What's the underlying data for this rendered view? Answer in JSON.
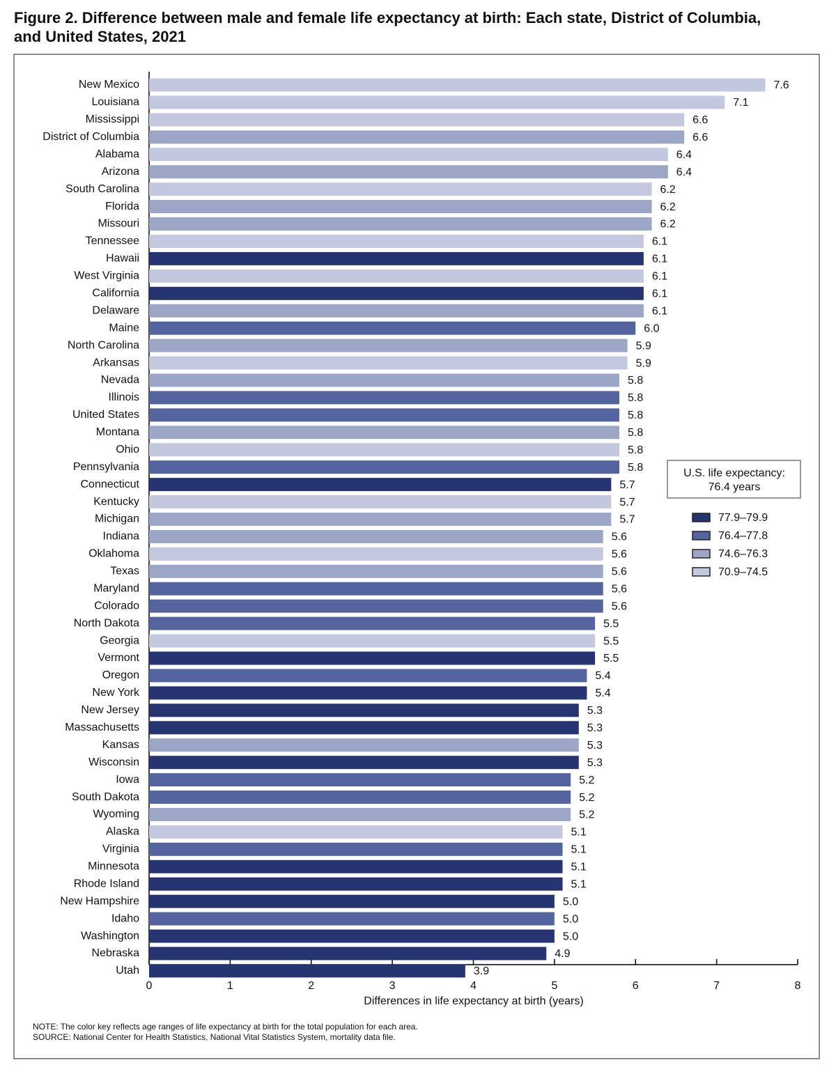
{
  "chart_data": {
    "type": "bar",
    "orientation": "horizontal",
    "title": "Figure 2. Difference between male and female life expectancy at birth: Each state, District of Columbia, and United States, 2021",
    "x_label": "Differences in life expectancy at birth (years)",
    "categories": [
      "New Mexico",
      "Louisiana",
      "Mississippi",
      "District of Columbia",
      "Alabama",
      "Arizona",
      "South Carolina",
      "Florida",
      "Missouri",
      "Tennessee",
      "Hawaii",
      "West Virginia",
      "California",
      "Delaware",
      "Maine",
      "North Carolina",
      "Arkansas",
      "Nevada",
      "Illinois",
      "United States",
      "Montana",
      "Ohio",
      "Pennsylvania",
      "Connecticut",
      "Kentucky",
      "Michigan",
      "Indiana",
      "Oklahoma",
      "Texas",
      "Maryland",
      "Colorado",
      "North Dakota",
      "Georgia",
      "Vermont",
      "Oregon",
      "New York",
      "New Jersey",
      "Massachusetts",
      "Kansas",
      "Wisconsin",
      "Iowa",
      "South Dakota",
      "Wyoming",
      "Alaska",
      "Virginia",
      "Minnesota",
      "Rhode Island",
      "New Hampshire",
      "Idaho",
      "Washington",
      "Nebraska",
      "Utah"
    ],
    "values": [
      7.6,
      7.1,
      6.6,
      6.6,
      6.4,
      6.4,
      6.2,
      6.2,
      6.2,
      6.1,
      6.1,
      6.1,
      6.1,
      6.1,
      6.0,
      5.9,
      5.9,
      5.8,
      5.8,
      5.8,
      5.8,
      5.8,
      5.8,
      5.7,
      5.7,
      5.7,
      5.6,
      5.6,
      5.6,
      5.6,
      5.6,
      5.5,
      5.5,
      5.5,
      5.4,
      5.4,
      5.3,
      5.3,
      5.3,
      5.3,
      5.2,
      5.2,
      5.2,
      5.1,
      5.1,
      5.1,
      5.1,
      5.0,
      5.0,
      5.0,
      4.9,
      3.9
    ],
    "value_labels": [
      "7.6",
      "7.1",
      "6.6",
      "6.6",
      "6.4",
      "6.4",
      "6.2",
      "6.2",
      "6.2",
      "6.1",
      "6.1",
      "6.1",
      "6.1",
      "6.1",
      "6.0",
      "5.9",
      "5.9",
      "5.8",
      "5.8",
      "5.8",
      "5.8",
      "5.8",
      "5.8",
      "5.7",
      "5.7",
      "5.7",
      "5.6",
      "5.6",
      "5.6",
      "5.6",
      "5.6",
      "5.5",
      "5.5",
      "5.5",
      "5.4",
      "5.4",
      "5.3",
      "5.3",
      "5.3",
      "5.3",
      "5.2",
      "5.2",
      "5.2",
      "5.1",
      "5.1",
      "5.1",
      "5.1",
      "5.0",
      "5.0",
      "5.0",
      "4.9",
      "3.9"
    ],
    "colors": [
      "#c4c8df",
      "#c4c8df",
      "#c4c8df",
      "#9ca7c8",
      "#c4c8df",
      "#9ca7c8",
      "#c4c8df",
      "#9ca7c8",
      "#9ca7c8",
      "#c4c8df",
      "#273472",
      "#c4c8df",
      "#273472",
      "#9ca7c8",
      "#53649e",
      "#9ca7c8",
      "#c4c8df",
      "#9ca7c8",
      "#53649e",
      "#53649e",
      "#9ca7c8",
      "#c4c8df",
      "#53649e",
      "#273472",
      "#c4c8df",
      "#9ca7c8",
      "#9ca7c8",
      "#c4c8df",
      "#9ca7c8",
      "#53649e",
      "#53649e",
      "#53649e",
      "#c4c8df",
      "#273472",
      "#53649e",
      "#273472",
      "#273472",
      "#273472",
      "#9ca7c8",
      "#273472",
      "#53649e",
      "#53649e",
      "#9ca7c8",
      "#c4c8df",
      "#53649e",
      "#273472",
      "#273472",
      "#273472",
      "#53649e",
      "#273472",
      "#273472",
      "#273472"
    ],
    "xlim": [
      0,
      8
    ],
    "xticks": [
      0,
      1,
      2,
      3,
      4,
      5,
      6,
      7,
      8
    ],
    "legend_title": [
      "U.S. life expectancy:",
      "76.4 years"
    ],
    "legend": [
      {
        "name": "77.9–79.9",
        "color": "#273472"
      },
      {
        "name": "76.4–77.8",
        "color": "#53649e"
      },
      {
        "name": "74.6–76.3",
        "color": "#9ca7c8"
      },
      {
        "name": "70.9–74.5",
        "color": "#c4c8df"
      }
    ],
    "note": "NOTE: The color key reflects age ranges of life expectancy at birth for the total population for each area.",
    "source": "SOURCE: National Center for Health Statistics, National Vital Statistics System, mortality data file."
  }
}
